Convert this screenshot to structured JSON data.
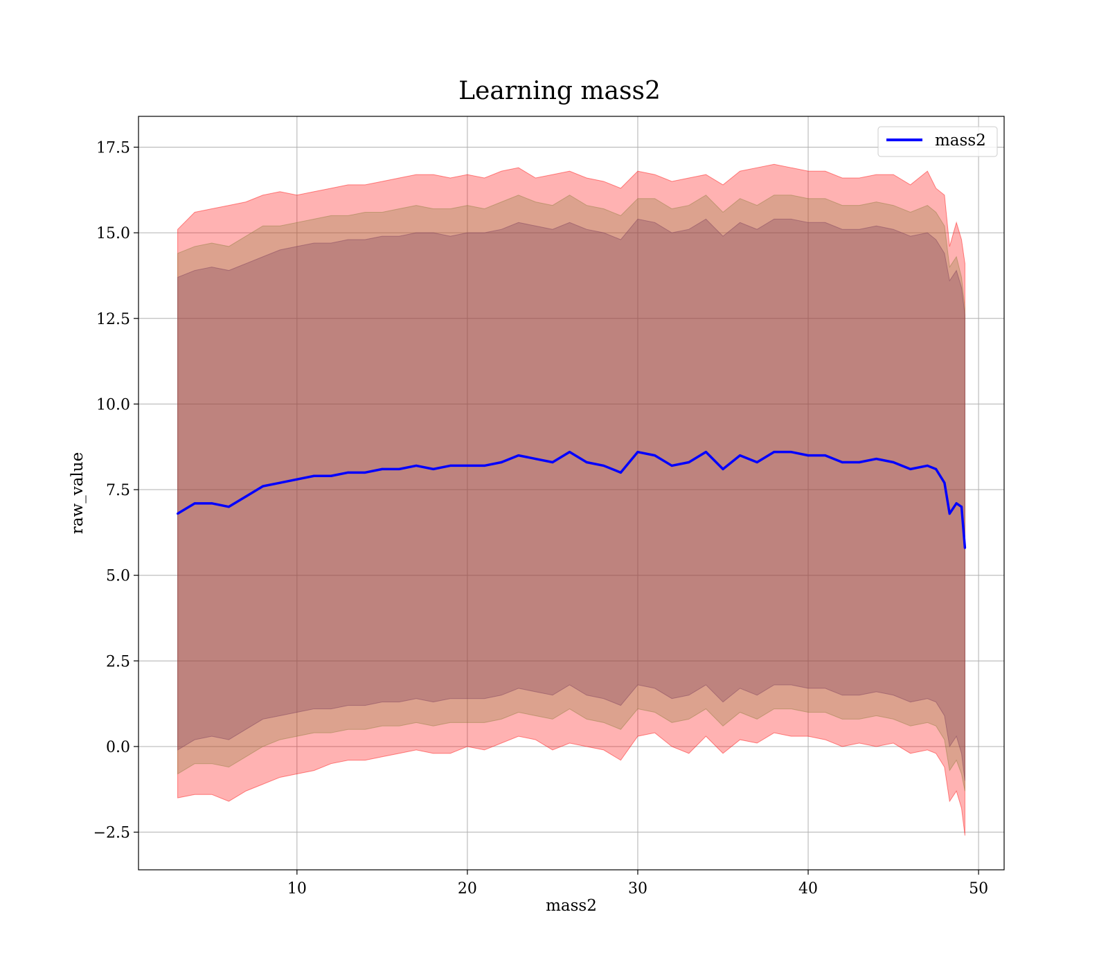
{
  "chart_data": {
    "type": "line",
    "title": "Learning mass2",
    "xlabel": "mass2",
    "ylabel": "raw_value",
    "xlim": [
      0.7,
      51.5
    ],
    "ylim": [
      -3.6,
      18.4
    ],
    "xticks": [
      10,
      20,
      30,
      40,
      50
    ],
    "xtick_labels": [
      "10",
      "20",
      "30",
      "40",
      "50"
    ],
    "yticks": [
      -2.5,
      0.0,
      2.5,
      5.0,
      7.5,
      10.0,
      12.5,
      15.0,
      17.5
    ],
    "ytick_labels": [
      "−2.5",
      "0.0",
      "2.5",
      "5.0",
      "7.5",
      "10.0",
      "12.5",
      "15.0",
      "17.5"
    ],
    "grid": true,
    "legend": {
      "placement": "top-right"
    },
    "series": [
      {
        "name": "mass2",
        "color": "#0000ff",
        "x": [
          3.0,
          4.0,
          5.0,
          6.0,
          7.0,
          8.0,
          9.0,
          10.0,
          11.0,
          12.0,
          13.0,
          14.0,
          15.0,
          16.0,
          17.0,
          18.0,
          19.0,
          20.0,
          21.0,
          22.0,
          23.0,
          24.0,
          25.0,
          26.0,
          27.0,
          28.0,
          29.0,
          30.0,
          31.0,
          32.0,
          33.0,
          34.0,
          35.0,
          36.0,
          37.0,
          38.0,
          39.0,
          40.0,
          41.0,
          42.0,
          43.0,
          44.0,
          45.0,
          46.0,
          47.0,
          47.5,
          48.0,
          48.3,
          48.7,
          49.0,
          49.2
        ],
        "values": [
          6.8,
          7.1,
          7.1,
          7.0,
          7.3,
          7.6,
          7.7,
          7.8,
          7.9,
          7.9,
          8.0,
          8.0,
          8.1,
          8.1,
          8.2,
          8.1,
          8.2,
          8.2,
          8.2,
          8.3,
          8.5,
          8.4,
          8.3,
          8.6,
          8.3,
          8.2,
          8.0,
          8.6,
          8.5,
          8.2,
          8.3,
          8.6,
          8.1,
          8.5,
          8.3,
          8.6,
          8.6,
          8.5,
          8.5,
          8.3,
          8.3,
          8.4,
          8.3,
          8.1,
          8.2,
          8.1,
          7.7,
          6.8,
          7.1,
          7.0,
          5.8
        ]
      }
    ],
    "bands": [
      {
        "color": "#ff0000",
        "x": [
          3.0,
          4.0,
          5.0,
          6.0,
          7.0,
          8.0,
          9.0,
          10.0,
          11.0,
          12.0,
          13.0,
          14.0,
          15.0,
          16.0,
          17.0,
          18.0,
          19.0,
          20.0,
          21.0,
          22.0,
          23.0,
          24.0,
          25.0,
          26.0,
          27.0,
          28.0,
          29.0,
          30.0,
          31.0,
          32.0,
          33.0,
          34.0,
          35.0,
          36.0,
          37.0,
          38.0,
          39.0,
          40.0,
          41.0,
          42.0,
          43.0,
          44.0,
          45.0,
          46.0,
          47.0,
          47.5,
          48.0,
          48.3,
          48.7,
          49.0,
          49.2
        ],
        "upper": [
          15.1,
          15.6,
          15.7,
          15.8,
          15.9,
          16.1,
          16.2,
          16.1,
          16.2,
          16.3,
          16.4,
          16.4,
          16.5,
          16.6,
          16.7,
          16.7,
          16.6,
          16.7,
          16.6,
          16.8,
          16.9,
          16.6,
          16.7,
          16.8,
          16.6,
          16.5,
          16.3,
          16.8,
          16.7,
          16.5,
          16.6,
          16.7,
          16.4,
          16.8,
          16.9,
          17.0,
          16.9,
          16.8,
          16.8,
          16.6,
          16.6,
          16.7,
          16.7,
          16.4,
          16.8,
          16.3,
          16.1,
          14.6,
          15.3,
          14.8,
          14.1
        ],
        "lower": [
          -1.5,
          -1.4,
          -1.4,
          -1.6,
          -1.3,
          -1.1,
          -0.9,
          -0.8,
          -0.7,
          -0.5,
          -0.4,
          -0.4,
          -0.3,
          -0.2,
          -0.1,
          -0.2,
          -0.2,
          0.0,
          -0.1,
          0.1,
          0.3,
          0.2,
          -0.1,
          0.1,
          0.0,
          -0.1,
          -0.4,
          0.3,
          0.4,
          0.0,
          -0.2,
          0.3,
          -0.2,
          0.2,
          0.1,
          0.4,
          0.3,
          0.3,
          0.2,
          0.0,
          0.1,
          0.0,
          0.1,
          -0.2,
          -0.1,
          -0.2,
          -0.6,
          -1.6,
          -1.3,
          -1.8,
          -2.6
        ]
      },
      {
        "color": "#8b7d3a",
        "x": [
          3.0,
          4.0,
          5.0,
          6.0,
          7.0,
          8.0,
          9.0,
          10.0,
          11.0,
          12.0,
          13.0,
          14.0,
          15.0,
          16.0,
          17.0,
          18.0,
          19.0,
          20.0,
          21.0,
          22.0,
          23.0,
          24.0,
          25.0,
          26.0,
          27.0,
          28.0,
          29.0,
          30.0,
          31.0,
          32.0,
          33.0,
          34.0,
          35.0,
          36.0,
          37.0,
          38.0,
          39.0,
          40.0,
          41.0,
          42.0,
          43.0,
          44.0,
          45.0,
          46.0,
          47.0,
          47.5,
          48.0,
          48.3,
          48.7,
          49.0,
          49.2
        ],
        "upper": [
          14.4,
          14.6,
          14.7,
          14.6,
          14.9,
          15.2,
          15.2,
          15.3,
          15.4,
          15.5,
          15.5,
          15.6,
          15.6,
          15.7,
          15.8,
          15.7,
          15.7,
          15.8,
          15.7,
          15.9,
          16.1,
          15.9,
          15.8,
          16.1,
          15.8,
          15.7,
          15.5,
          16.0,
          16.0,
          15.7,
          15.8,
          16.1,
          15.6,
          16.0,
          15.8,
          16.1,
          16.1,
          16.0,
          16.0,
          15.8,
          15.8,
          15.9,
          15.8,
          15.6,
          15.8,
          15.6,
          15.2,
          14.0,
          14.3,
          13.7,
          12.8
        ],
        "lower": [
          -0.8,
          -0.5,
          -0.5,
          -0.6,
          -0.3,
          0.0,
          0.2,
          0.3,
          0.4,
          0.4,
          0.5,
          0.5,
          0.6,
          0.6,
          0.7,
          0.6,
          0.7,
          0.7,
          0.7,
          0.8,
          1.0,
          0.9,
          0.8,
          1.1,
          0.8,
          0.7,
          0.5,
          1.1,
          1.0,
          0.7,
          0.8,
          1.1,
          0.6,
          1.0,
          0.8,
          1.1,
          1.1,
          1.0,
          1.0,
          0.8,
          0.8,
          0.9,
          0.8,
          0.6,
          0.7,
          0.6,
          0.2,
          -0.7,
          -0.4,
          -0.8,
          -1.3
        ]
      },
      {
        "color": "#7a3c5a",
        "x": [
          3.0,
          4.0,
          5.0,
          6.0,
          7.0,
          8.0,
          9.0,
          10.0,
          11.0,
          12.0,
          13.0,
          14.0,
          15.0,
          16.0,
          17.0,
          18.0,
          19.0,
          20.0,
          21.0,
          22.0,
          23.0,
          24.0,
          25.0,
          26.0,
          27.0,
          28.0,
          29.0,
          30.0,
          31.0,
          32.0,
          33.0,
          34.0,
          35.0,
          36.0,
          37.0,
          38.0,
          39.0,
          40.0,
          41.0,
          42.0,
          43.0,
          44.0,
          45.0,
          46.0,
          47.0,
          47.5,
          48.0,
          48.3,
          48.7,
          49.0,
          49.2
        ],
        "upper": [
          13.7,
          13.9,
          14.0,
          13.9,
          14.1,
          14.3,
          14.5,
          14.6,
          14.7,
          14.7,
          14.8,
          14.8,
          14.9,
          14.9,
          15.0,
          15.0,
          14.9,
          15.0,
          15.0,
          15.1,
          15.3,
          15.2,
          15.1,
          15.3,
          15.1,
          15.0,
          14.8,
          15.4,
          15.3,
          15.0,
          15.1,
          15.4,
          14.9,
          15.3,
          15.1,
          15.4,
          15.4,
          15.3,
          15.3,
          15.1,
          15.1,
          15.2,
          15.1,
          14.9,
          15.0,
          14.8,
          14.4,
          13.6,
          13.9,
          13.4,
          12.6
        ],
        "lower": [
          -0.1,
          0.2,
          0.3,
          0.2,
          0.5,
          0.8,
          0.9,
          1.0,
          1.1,
          1.1,
          1.2,
          1.2,
          1.3,
          1.3,
          1.4,
          1.3,
          1.4,
          1.4,
          1.4,
          1.5,
          1.7,
          1.6,
          1.5,
          1.8,
          1.5,
          1.4,
          1.2,
          1.8,
          1.7,
          1.4,
          1.5,
          1.8,
          1.3,
          1.7,
          1.5,
          1.8,
          1.8,
          1.7,
          1.7,
          1.5,
          1.5,
          1.6,
          1.5,
          1.3,
          1.4,
          1.3,
          0.9,
          0.0,
          0.3,
          -0.2,
          -1.0
        ]
      }
    ]
  }
}
